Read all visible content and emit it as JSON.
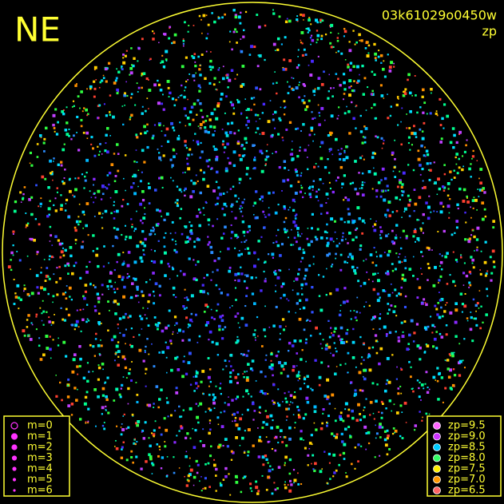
{
  "header": {
    "direction": "NE",
    "frame": "03k61029o0450w",
    "mode": "zp"
  },
  "magnitude_legend": {
    "color": "#ff33ff",
    "items": [
      "m=0",
      "m=1",
      "m=2",
      "m=3",
      "m=4",
      "m=5",
      "m=6"
    ]
  },
  "zp_legend": {
    "items": [
      {
        "label": "zp=9.5",
        "color": "#ff66ff"
      },
      {
        "label": "zp=9.0",
        "color": "#cc33ff"
      },
      {
        "label": "zp=8.5",
        "color": "#00ccff"
      },
      {
        "label": "zp=8.0",
        "color": "#33ff66"
      },
      {
        "label": "zp=7.5",
        "color": "#ffee00"
      },
      {
        "label": "zp=7.0",
        "color": "#ff9900"
      },
      {
        "label": "zp=6.5",
        "color": "#ff6666"
      }
    ]
  }
}
